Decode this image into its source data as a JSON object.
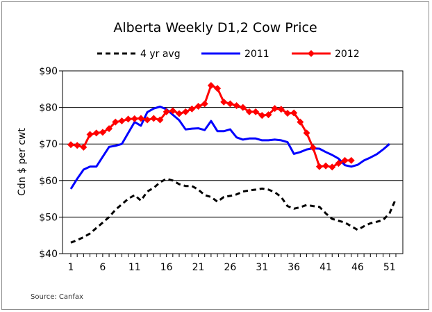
{
  "chart_data": {
    "type": "line",
    "title": "Alberta Weekly D1,2 Cow Price",
    "ylabel": "Cdn $ per cwt",
    "xlabel": "",
    "source": "Source:  Canfax",
    "ylim": [
      40,
      90
    ],
    "xlim": [
      1,
      52
    ],
    "y_ticks": [
      40,
      50,
      60,
      70,
      80,
      90
    ],
    "y_tick_labels": [
      "$40",
      "$50",
      "$60",
      "$70",
      "$80",
      "$90"
    ],
    "x_ticks": [
      1,
      6,
      11,
      16,
      21,
      26,
      31,
      36,
      41,
      46,
      51
    ],
    "x_tick_labels": [
      "1",
      "6",
      "11",
      "16",
      "21",
      "26",
      "31",
      "36",
      "41",
      "46",
      "51"
    ],
    "grid": "horizontal",
    "legend_position": "top",
    "series": [
      {
        "name": "4 yr avg",
        "color": "#000000",
        "style": "dashed",
        "x": [
          1,
          2,
          3,
          4,
          5,
          6,
          7,
          8,
          9,
          10,
          11,
          12,
          13,
          14,
          15,
          16,
          17,
          18,
          19,
          20,
          21,
          22,
          23,
          24,
          25,
          26,
          27,
          28,
          29,
          30,
          31,
          32,
          33,
          34,
          35,
          36,
          37,
          38,
          39,
          40,
          41,
          42,
          43,
          44,
          45,
          46,
          47,
          48,
          49,
          50,
          51,
          52
        ],
        "values": [
          43,
          43.7,
          44.5,
          45.5,
          47,
          48.5,
          50,
          52,
          53.5,
          55,
          56,
          54.5,
          57,
          58,
          59.5,
          60.5,
          60,
          59,
          58.5,
          58.5,
          57.5,
          56,
          55.5,
          54.2,
          55.5,
          55.8,
          56.2,
          57,
          57.3,
          57.5,
          57.8,
          57.5,
          56.8,
          55.5,
          53,
          52.3,
          52.7,
          53.3,
          53,
          52.8,
          51,
          49.5,
          49,
          48.5,
          47.5,
          46.5,
          47.5,
          48.3,
          48.7,
          49.2,
          51,
          55
        ]
      },
      {
        "name": "2011",
        "color": "#0000ff",
        "style": "solid",
        "x": [
          1,
          2,
          3,
          4,
          5,
          6,
          7,
          8,
          9,
          10,
          11,
          12,
          13,
          14,
          15,
          16,
          17,
          18,
          19,
          20,
          21,
          22,
          23,
          24,
          25,
          26,
          27,
          28,
          29,
          30,
          31,
          32,
          33,
          34,
          35,
          36,
          37,
          38,
          39,
          40,
          41,
          42,
          43,
          44,
          45,
          46,
          47,
          48,
          49,
          50,
          51
        ],
        "values": [
          57.7,
          60.5,
          63,
          63.8,
          63.8,
          66.5,
          69.2,
          69.5,
          70,
          73,
          76,
          75,
          78.7,
          79.7,
          80.2,
          79.5,
          78,
          76.5,
          74,
          74.2,
          74.3,
          73.8,
          76.3,
          73.5,
          73.5,
          74,
          71.8,
          71.2,
          71.5,
          71.5,
          71,
          71,
          71.2,
          71,
          70.5,
          67.3,
          67.8,
          68.5,
          68.8,
          68.7,
          67.8,
          67,
          66,
          64.2,
          63.8,
          64.3,
          65.5,
          66.3,
          67.2,
          68.5,
          70
        ]
      },
      {
        "name": "2012",
        "color": "#ff0000",
        "style": "solid-markers",
        "x": [
          1,
          2,
          3,
          4,
          5,
          6,
          7,
          8,
          9,
          10,
          11,
          12,
          13,
          14,
          15,
          16,
          17,
          18,
          19,
          20,
          21,
          22,
          23,
          24,
          25,
          26,
          27,
          28,
          29,
          30,
          31,
          32,
          33,
          34,
          35,
          36,
          37,
          38,
          39,
          40,
          41,
          42,
          43,
          44,
          45
        ],
        "values": [
          69.8,
          69.6,
          69.1,
          72.6,
          73,
          73.2,
          74.2,
          76,
          76.3,
          76.8,
          76.9,
          77,
          76.6,
          77,
          76.6,
          78.8,
          79.1,
          78.3,
          78.8,
          79.6,
          80.3,
          81,
          86,
          85.2,
          81.5,
          81,
          80.5,
          80,
          78.8,
          78.8,
          77.8,
          78,
          79.7,
          79.5,
          78.4,
          78.5,
          76,
          73,
          69,
          63.8,
          64,
          63.7,
          64.7,
          65.5,
          65.5
        ]
      }
    ]
  }
}
